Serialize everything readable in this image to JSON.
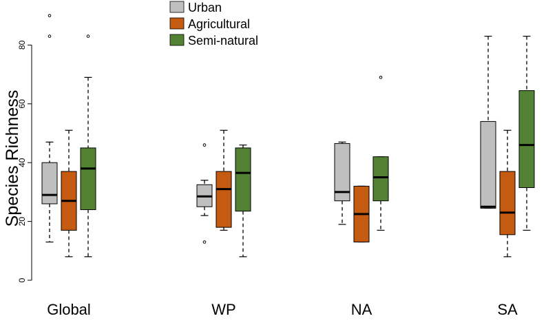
{
  "chart_data": {
    "type": "boxplot",
    "ylabel": "Species Richness",
    "ylim": [
      0,
      90
    ],
    "yticks": [
      "0",
      "20",
      "40",
      "60",
      "80"
    ],
    "categories": [
      "Global",
      "WP",
      "NA",
      "SA"
    ],
    "series": [
      {
        "name": "Urban",
        "color": "#bfbfbf",
        "boxes": [
          {
            "min": 13,
            "q1": 26,
            "median": 29,
            "q3": 40,
            "max": 47,
            "outliers": [
              83,
              90
            ]
          },
          {
            "min": 22,
            "q1": 25,
            "median": 28.5,
            "q3": 32.5,
            "max": 34,
            "outliers": [
              13,
              46
            ]
          },
          {
            "min": 19,
            "q1": 27,
            "median": 30,
            "q3": 46.5,
            "max": 47,
            "outliers": []
          },
          {
            "min": 24.5,
            "q1": 24.5,
            "median": 25,
            "q3": 54,
            "max": 83,
            "outliers": []
          }
        ]
      },
      {
        "name": "Agricultural",
        "color": "#c55a11",
        "boxes": [
          {
            "min": 8,
            "q1": 17,
            "median": 27,
            "q3": 37,
            "max": 51,
            "outliers": []
          },
          {
            "min": 17,
            "q1": 18,
            "median": 31,
            "q3": 37,
            "max": 51,
            "outliers": []
          },
          {
            "min": 13,
            "q1": 13,
            "median": 22.5,
            "q3": 32,
            "max": 32,
            "outliers": []
          },
          {
            "min": 8,
            "q1": 15.5,
            "median": 23,
            "q3": 37,
            "max": 51,
            "outliers": []
          }
        ]
      },
      {
        "name": "Semi-natural",
        "color": "#548235",
        "boxes": [
          {
            "min": 8,
            "q1": 24,
            "median": 38,
            "q3": 45,
            "max": 69,
            "outliers": [
              83
            ]
          },
          {
            "min": 8,
            "q1": 23.5,
            "median": 36.5,
            "q3": 45,
            "max": 46,
            "outliers": []
          },
          {
            "min": 17,
            "q1": 27,
            "median": 35,
            "q3": 42,
            "max": 42,
            "outliers": [
              69
            ]
          },
          {
            "min": 17,
            "q1": 31.5,
            "median": 46,
            "q3": 64.5,
            "max": 83,
            "outliers": []
          }
        ]
      }
    ],
    "legend_position": "top-center"
  }
}
